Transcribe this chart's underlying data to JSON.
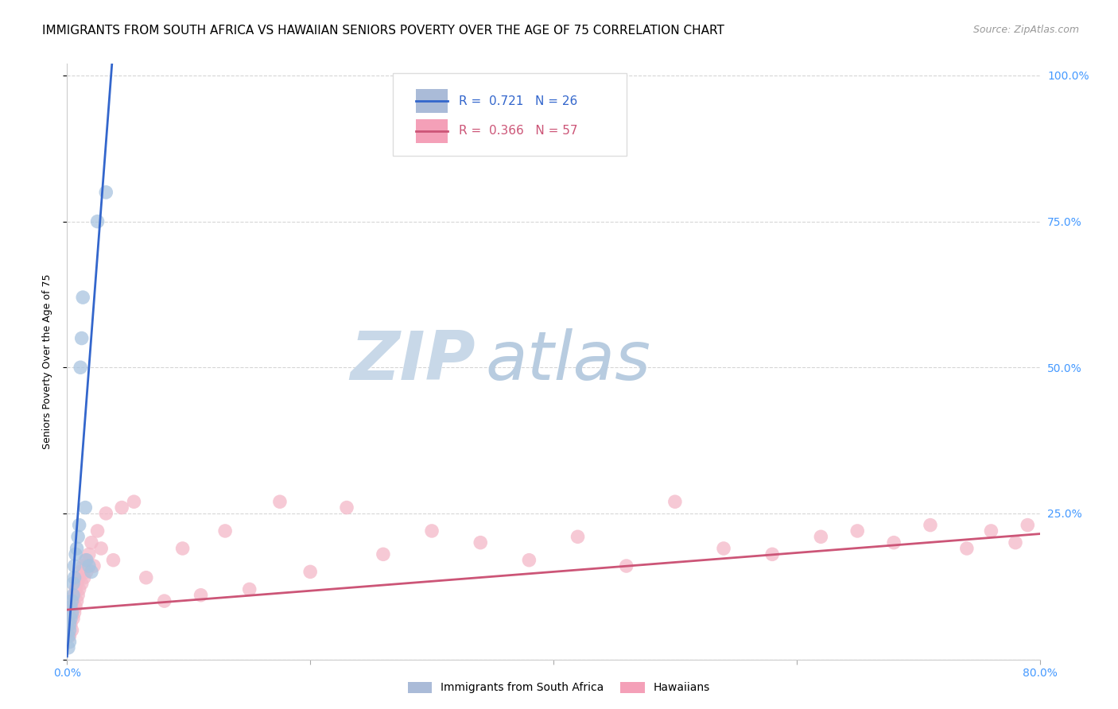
{
  "title": "IMMIGRANTS FROM SOUTH AFRICA VS HAWAIIAN SENIORS POVERTY OVER THE AGE OF 75 CORRELATION CHART",
  "source": "Source: ZipAtlas.com",
  "ylabel_label": "Seniors Poverty Over the Age of 75",
  "legend_bottom": [
    "Immigrants from South Africa",
    "Hawaiians"
  ],
  "blue_R": 0.721,
  "blue_N": 26,
  "pink_R": 0.366,
  "pink_N": 57,
  "blue_color": "#A8C4E0",
  "pink_color": "#F4B8C8",
  "blue_line_color": "#3366CC",
  "pink_line_color": "#CC5577",
  "blue_x": [
    0.001,
    0.001,
    0.002,
    0.002,
    0.002,
    0.003,
    0.003,
    0.004,
    0.004,
    0.005,
    0.005,
    0.006,
    0.006,
    0.007,
    0.008,
    0.009,
    0.01,
    0.011,
    0.012,
    0.013,
    0.015,
    0.016,
    0.018,
    0.02,
    0.025,
    0.032
  ],
  "blue_y": [
    0.02,
    0.04,
    0.03,
    0.06,
    0.05,
    0.07,
    0.09,
    0.08,
    0.1,
    0.11,
    0.13,
    0.14,
    0.16,
    0.18,
    0.19,
    0.21,
    0.23,
    0.5,
    0.55,
    0.62,
    0.26,
    0.17,
    0.16,
    0.15,
    0.75,
    0.8
  ],
  "pink_x": [
    0.002,
    0.003,
    0.003,
    0.004,
    0.004,
    0.005,
    0.005,
    0.006,
    0.006,
    0.007,
    0.007,
    0.008,
    0.008,
    0.009,
    0.01,
    0.01,
    0.011,
    0.012,
    0.013,
    0.014,
    0.015,
    0.016,
    0.018,
    0.02,
    0.022,
    0.025,
    0.028,
    0.032,
    0.038,
    0.045,
    0.055,
    0.065,
    0.08,
    0.095,
    0.11,
    0.13,
    0.15,
    0.175,
    0.2,
    0.23,
    0.26,
    0.3,
    0.34,
    0.38,
    0.42,
    0.46,
    0.5,
    0.54,
    0.58,
    0.62,
    0.65,
    0.68,
    0.71,
    0.74,
    0.76,
    0.78,
    0.79
  ],
  "pink_y": [
    0.04,
    0.06,
    0.08,
    0.05,
    0.09,
    0.07,
    0.1,
    0.08,
    0.11,
    0.09,
    0.12,
    0.1,
    0.13,
    0.11,
    0.12,
    0.14,
    0.15,
    0.13,
    0.16,
    0.14,
    0.17,
    0.15,
    0.18,
    0.2,
    0.16,
    0.22,
    0.19,
    0.25,
    0.17,
    0.26,
    0.27,
    0.14,
    0.1,
    0.19,
    0.11,
    0.22,
    0.12,
    0.27,
    0.15,
    0.26,
    0.18,
    0.22,
    0.2,
    0.17,
    0.21,
    0.16,
    0.27,
    0.19,
    0.18,
    0.21,
    0.22,
    0.2,
    0.23,
    0.19,
    0.22,
    0.2,
    0.23
  ],
  "blue_line_x": [
    0.0,
    0.038
  ],
  "blue_line_y": [
    0.005,
    1.05
  ],
  "pink_line_x": [
    0.0,
    0.8
  ],
  "pink_line_y": [
    0.085,
    0.215
  ],
  "background_color": "#FFFFFF",
  "watermark_zip": "ZIP",
  "watermark_atlas": "atlas",
  "watermark_color_zip": "#C8D8E8",
  "watermark_color_atlas": "#B8CCE0",
  "xlim": [
    0.0,
    0.8
  ],
  "ylim": [
    0.0,
    1.0
  ],
  "title_fontsize": 11,
  "source_fontsize": 9,
  "axis_label_fontsize": 9,
  "tick_fontsize": 10
}
